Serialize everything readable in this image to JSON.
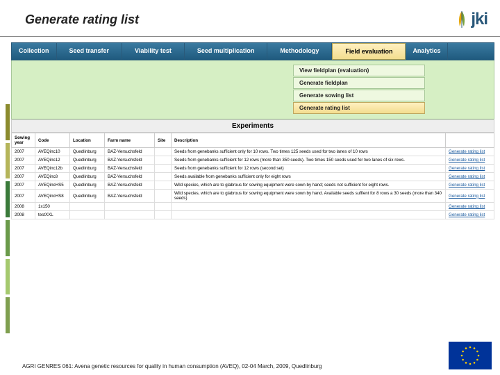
{
  "page_title": "Generate rating list",
  "logo_text": "jki",
  "tabs": {
    "collection": "Collection",
    "seed_transfer": "Seed transfer",
    "viability": "Viability test",
    "multiplication": "Seed multiplication",
    "methodology": "Methodology",
    "field_eval": "Field evaluation",
    "analytics": "Analytics"
  },
  "submenu": {
    "view_fieldplan": "View fieldplan (evaluation)",
    "gen_fieldplan": "Generate fieldplan",
    "gen_sowing": "Generate sowing list",
    "gen_rating": "Generate rating list"
  },
  "experiments_header": "Experiments",
  "columns": {
    "year": "Sowing year",
    "code": "Code",
    "location": "Location",
    "farm": "Farm name",
    "site": "Site",
    "description": "Description"
  },
  "rows": [
    {
      "year": "2007",
      "code": "AVEQinc10",
      "loc": "Quedlinburg",
      "farm": "BAZ-Versuchsfeld",
      "site": "",
      "desc": "Seeds from genebanks sufficient only for 10 rows. Two times 125 seeds used for two lanes of 10 rows",
      "link": "Generate rating list"
    },
    {
      "year": "2007",
      "code": "AVEQinc12",
      "loc": "Quedlinburg",
      "farm": "BAZ-Versuchsfeld",
      "site": "",
      "desc": "Seeds from genebanks sufficient for 12 rows (more than 350 seeds). Two times 150 seeds used for two lanes of six rows.",
      "link": "Generate rating list"
    },
    {
      "year": "2007",
      "code": "AVEQinc12b",
      "loc": "Quedlinburg",
      "farm": "BAZ-Versuchsfeld",
      "site": "",
      "desc": "Seeds from genebanks sufficient for 12 rows (second set)",
      "link": "Generate rating list"
    },
    {
      "year": "2007",
      "code": "AVEQinc8",
      "loc": "Quedlinburg",
      "farm": "BAZ-Versuchsfeld",
      "site": "",
      "desc": "Seeds available from genebanks sufficient only for eight rows",
      "link": "Generate rating list"
    },
    {
      "year": "2007",
      "code": "AVEQincHS5",
      "loc": "Quedlinburg",
      "farm": "BAZ-Versuchsfeld",
      "site": "",
      "desc": "Wild species, which are to glabrous for sowing equipment were sown by hand; seeds not sufficient for eight rows.",
      "link": "Generate rating list"
    },
    {
      "year": "2007",
      "code": "AVEQincHS8",
      "loc": "Quedlinburg",
      "farm": "BAZ-Versuchsfeld",
      "site": "",
      "desc": "Wild species, which are to glabrous for sowing equipment were sown by hand. Available seeds suffient for 8 rows a 30 seeds (more than 340 seeds)",
      "link": "Generate rating list"
    },
    {
      "year": "2008",
      "code": "1x150",
      "loc": "",
      "farm": "",
      "site": "",
      "desc": "",
      "link": "Generate rating list"
    },
    {
      "year": "2008",
      "code": "testXXL",
      "loc": "",
      "farm": "",
      "site": "",
      "desc": "",
      "link": "Generate rating list"
    }
  ],
  "footer": "AGRI GENRES 061: Avena genetic resources for quality in human consumption (AVEQ), 02-04 March, 2009, Quedlinburg"
}
